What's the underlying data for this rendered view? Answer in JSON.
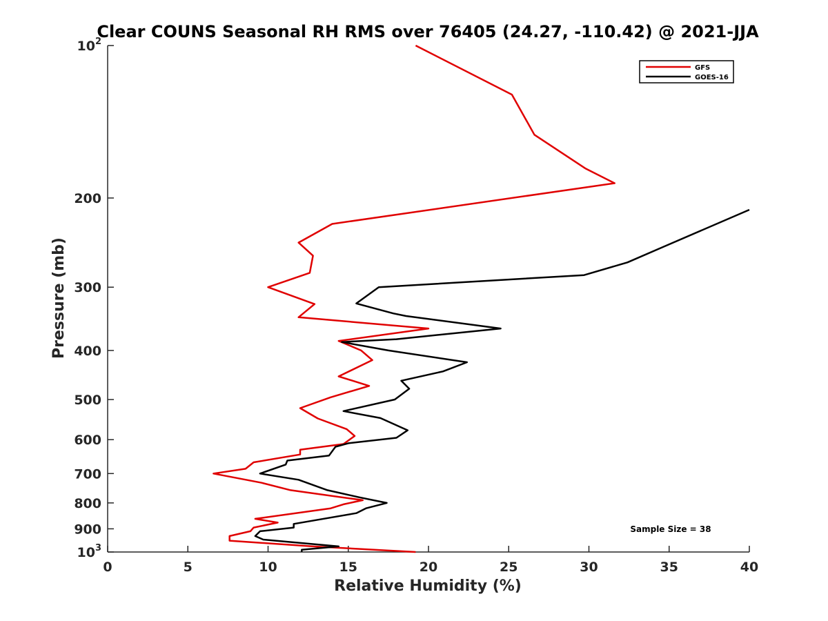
{
  "chart_data": {
    "type": "line",
    "title": "Clear COUNS Seasonal RH RMS over 76405 (24.27, -110.42) @ 2021-JJA",
    "xlabel": "Relative Humidity (%)",
    "ylabel": "Pressure (mb)",
    "xlim": [
      0,
      40
    ],
    "ylim": [
      100,
      1000
    ],
    "yscale": "log",
    "y_reversed": true,
    "grid": false,
    "legend_position": "top-right",
    "x_ticks": [
      "0",
      "5",
      "10",
      "15",
      "20",
      "25",
      "30",
      "35",
      "40"
    ],
    "y_ticks": [
      {
        "value": 100,
        "base": "10",
        "exp": "2"
      },
      {
        "value": 200,
        "label": "200"
      },
      {
        "value": 300,
        "label": "300"
      },
      {
        "value": 400,
        "label": "400"
      },
      {
        "value": 500,
        "label": "500"
      },
      {
        "value": 600,
        "label": "600"
      },
      {
        "value": 700,
        "label": "700"
      },
      {
        "value": 800,
        "label": "800"
      },
      {
        "value": 900,
        "label": "900"
      },
      {
        "value": 1000,
        "base": "10",
        "exp": "3"
      }
    ],
    "series": [
      {
        "name": "GFS",
        "color": "#e00000",
        "points": [
          [
            19.2,
            100
          ],
          [
            25.2,
            125
          ],
          [
            26.6,
            150
          ],
          [
            29.8,
            175
          ],
          [
            31.6,
            187
          ],
          [
            14.0,
            225
          ],
          [
            11.9,
            245
          ],
          [
            12.8,
            260
          ],
          [
            12.6,
            281
          ],
          [
            10.0,
            300
          ],
          [
            12.9,
            324
          ],
          [
            11.9,
            344
          ],
          [
            20.0,
            362
          ],
          [
            14.4,
            383
          ],
          [
            15.8,
            400
          ],
          [
            16.5,
            418
          ],
          [
            14.4,
            450
          ],
          [
            16.3,
            470
          ],
          [
            13.9,
            495
          ],
          [
            12.0,
            520
          ],
          [
            13.1,
            545
          ],
          [
            14.9,
            572
          ],
          [
            15.4,
            590
          ],
          [
            14.7,
            612
          ],
          [
            12.0,
            628
          ],
          [
            12.0,
            642
          ],
          [
            9.1,
            665
          ],
          [
            8.6,
            685
          ],
          [
            6.6,
            700
          ],
          [
            9.6,
            730
          ],
          [
            11.4,
            755
          ],
          [
            15.9,
            790
          ],
          [
            14.7,
            805
          ],
          [
            13.9,
            820
          ],
          [
            9.2,
            860
          ],
          [
            10.6,
            875
          ],
          [
            9.1,
            895
          ],
          [
            8.9,
            910
          ],
          [
            7.6,
            930
          ],
          [
            7.6,
            950
          ],
          [
            12.8,
            975
          ],
          [
            19.2,
            1000
          ]
        ]
      },
      {
        "name": "GOES-16",
        "color": "#000000",
        "points": [
          [
            40.0,
            211
          ],
          [
            34.6,
            250
          ],
          [
            32.4,
            268
          ],
          [
            29.7,
            284
          ],
          [
            16.9,
            300
          ],
          [
            15.5,
            323
          ],
          [
            17.8,
            338
          ],
          [
            18.6,
            342
          ],
          [
            24.5,
            362
          ],
          [
            18.0,
            380
          ],
          [
            14.6,
            385
          ],
          [
            17.5,
            400
          ],
          [
            22.4,
            422
          ],
          [
            20.9,
            440
          ],
          [
            18.3,
            459
          ],
          [
            18.8,
            476
          ],
          [
            17.9,
            500
          ],
          [
            14.7,
            527
          ],
          [
            17.0,
            544
          ],
          [
            18.7,
            575
          ],
          [
            18.0,
            595
          ],
          [
            15.0,
            610
          ],
          [
            14.2,
            620
          ],
          [
            13.8,
            645
          ],
          [
            11.2,
            660
          ],
          [
            11.1,
            672
          ],
          [
            9.5,
            700
          ],
          [
            11.9,
            720
          ],
          [
            13.7,
            755
          ],
          [
            15.7,
            780
          ],
          [
            17.4,
            800
          ],
          [
            16.1,
            820
          ],
          [
            15.5,
            838
          ],
          [
            11.6,
            880
          ],
          [
            11.6,
            895
          ],
          [
            9.5,
            910
          ],
          [
            9.2,
            930
          ],
          [
            9.7,
            945
          ],
          [
            14.4,
            975
          ],
          [
            12.1,
            990
          ],
          [
            12.1,
            1000
          ]
        ]
      }
    ],
    "annotations": [
      "Sample Size = 38"
    ]
  }
}
